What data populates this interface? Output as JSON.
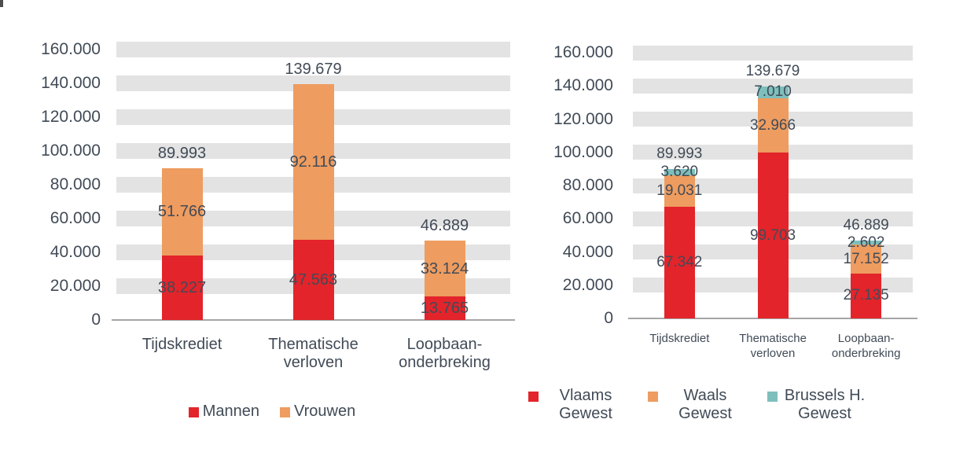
{
  "page": {
    "background": "#ffffff"
  },
  "colors": {
    "text": "#414B57",
    "grid_band": "#E3E3E3",
    "axis_line": "#A5A5A5",
    "red": "#E3242B",
    "orange": "#EE9C5F",
    "teal": "#7EBFBC"
  },
  "chart_data": [
    {
      "type": "bar",
      "stacked": true,
      "title": "",
      "xlabel": "",
      "ylabel": "",
      "ylim": [
        0,
        160000
      ],
      "grid": "thick horizontal bands",
      "legend_position": "bottom",
      "categories": [
        "Tijdskrediet",
        "Thematische verloven",
        "Loopbaan-onderbreking"
      ],
      "y_ticks": [
        {
          "value": 0,
          "label": "0"
        },
        {
          "value": 20000,
          "label": "20.000"
        },
        {
          "value": 40000,
          "label": "40.000"
        },
        {
          "value": 60000,
          "label": "60.000"
        },
        {
          "value": 80000,
          "label": "80.000"
        },
        {
          "value": 100000,
          "label": "100.000"
        },
        {
          "value": 120000,
          "label": "120.000"
        },
        {
          "value": 140000,
          "label": "140.000"
        },
        {
          "value": 160000,
          "label": "160.000"
        }
      ],
      "series": [
        {
          "name": "Mannen",
          "color": "#E3242B",
          "values": [
            38227,
            47563,
            13765
          ],
          "labels": [
            "38.227",
            "47.563",
            "13.765"
          ]
        },
        {
          "name": "Vrouwen",
          "color": "#EE9C5F",
          "values": [
            51766,
            92116,
            33124
          ],
          "labels": [
            "51.766",
            "92.116",
            "33.124"
          ]
        }
      ],
      "totals": {
        "values": [
          89993,
          139679,
          46889
        ],
        "labels": [
          "89.993",
          "139.679",
          "46.889"
        ]
      }
    },
    {
      "type": "bar",
      "stacked": true,
      "title": "",
      "xlabel": "",
      "ylabel": "",
      "ylim": [
        0,
        160000
      ],
      "grid": "thick horizontal bands",
      "legend_position": "bottom",
      "categories": [
        "Tijdskrediet",
        "Thematische verloven",
        "Loopbaan-onderbreking"
      ],
      "y_ticks": [
        {
          "value": 0,
          "label": "0"
        },
        {
          "value": 20000,
          "label": "20.000"
        },
        {
          "value": 40000,
          "label": "40.000"
        },
        {
          "value": 60000,
          "label": "60.000"
        },
        {
          "value": 80000,
          "label": "80.000"
        },
        {
          "value": 100000,
          "label": "100.000"
        },
        {
          "value": 120000,
          "label": "120.000"
        },
        {
          "value": 140000,
          "label": "140.000"
        },
        {
          "value": 160000,
          "label": "160.000"
        }
      ],
      "series": [
        {
          "name": "Vlaams Gewest",
          "color": "#E3242B",
          "values": [
            67342,
            99703,
            27135
          ],
          "labels": [
            "67.342",
            "99.703",
            "27.135"
          ]
        },
        {
          "name": "Waals Gewest",
          "color": "#EE9C5F",
          "values": [
            19031,
            32966,
            17152
          ],
          "labels": [
            "19.031",
            "32.966",
            "17.152"
          ]
        },
        {
          "name": "Brussels H. Gewest",
          "color": "#7EBFBC",
          "values": [
            3620,
            7010,
            2602
          ],
          "labels": [
            "3.620",
            "7.010",
            "2.602"
          ]
        }
      ],
      "totals": {
        "values": [
          89993,
          139679,
          46889
        ],
        "labels": [
          "89.993",
          "139.679",
          "46.889"
        ]
      }
    }
  ]
}
